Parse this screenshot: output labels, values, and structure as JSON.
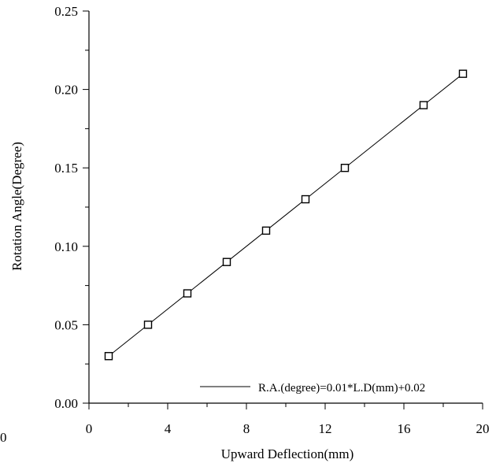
{
  "chart_data": {
    "type": "scatter",
    "xlabel": "Upward Deflection(mm)",
    "ylabel": "Rotation Angle(Degree)",
    "xlim": [
      0,
      20
    ],
    "ylim": [
      0,
      0.25
    ],
    "x_ticks": [
      0,
      4,
      8,
      12,
      16,
      20
    ],
    "x_tick_labels": [
      "0",
      "4",
      "8",
      "12",
      "16",
      "20"
    ],
    "y_ticks": [
      0,
      0.05,
      0.1,
      0.15,
      0.2,
      0.25
    ],
    "y_tick_labels": [
      "0.00",
      "0.05",
      "0.10",
      "0.15",
      "0.20",
      "0.25"
    ],
    "stray_label": "0",
    "grid": false,
    "legend_position": "bottom-right",
    "series": [
      {
        "kind": "points",
        "marker": "open-square",
        "x": [
          1,
          3,
          5,
          7,
          9,
          11,
          13,
          17,
          19
        ],
        "y": [
          0.03,
          0.05,
          0.07,
          0.09,
          0.11,
          0.13,
          0.15,
          0.19,
          0.21
        ]
      },
      {
        "kind": "fit-line",
        "name": "R.A.(degree)=0.01*L.D(mm)+0.02",
        "slope": 0.01,
        "intercept": 0.02,
        "x_range": [
          1,
          19
        ]
      }
    ],
    "colors": {
      "line": "#000000",
      "marker": "#000000",
      "background": "#ffffff"
    }
  }
}
